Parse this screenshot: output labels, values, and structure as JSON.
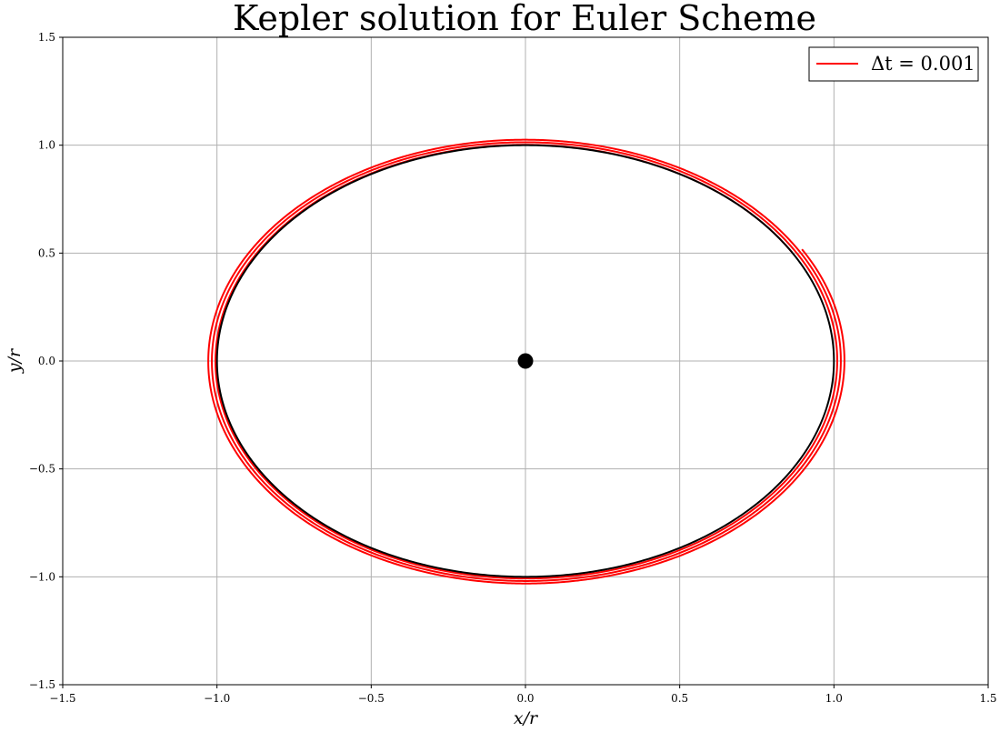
{
  "chart_data": {
    "type": "line",
    "title": "Kepler solution for Euler Scheme",
    "xlabel": "x/r",
    "ylabel": "y/r",
    "xlim": [
      -1.5,
      1.5
    ],
    "ylim": [
      -1.5,
      1.5
    ],
    "xticks": [
      -1.5,
      -1.0,
      -0.5,
      0.0,
      0.5,
      1.0,
      1.5
    ],
    "yticks": [
      -1.5,
      -1.0,
      -0.5,
      0.0,
      0.5,
      1.0,
      1.5
    ],
    "xtick_labels": [
      "−1.5",
      "−1.0",
      "−0.5",
      "0.0",
      "0.5",
      "1.0",
      "1.5"
    ],
    "ytick_labels": [
      "−1.5",
      "−1.0",
      "−0.5",
      "0.0",
      "0.5",
      "1.0",
      "1.5"
    ],
    "grid": true,
    "legend_position": "top-right",
    "series": [
      {
        "name": "Δt = 0.001",
        "color": "#ff0000",
        "kind": "spiral",
        "start_angle_deg": 30,
        "end_radius": 1.035,
        "revolutions": 3
      },
      {
        "color": "#000000",
        "kind": "circle",
        "radius": 1.0
      }
    ],
    "center_point": {
      "x": 0.0,
      "y": 0.0,
      "color": "#000000"
    }
  }
}
